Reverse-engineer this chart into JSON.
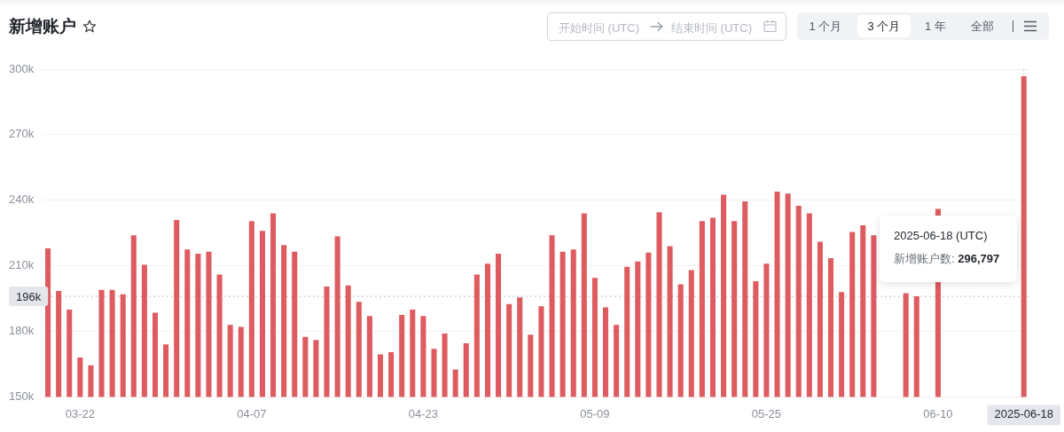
{
  "chart_data": {
    "type": "bar",
    "title": "新增账户",
    "categories": [
      null,
      null,
      null,
      "03-22",
      null,
      null,
      null,
      null,
      null,
      null,
      null,
      null,
      null,
      null,
      null,
      null,
      null,
      null,
      null,
      "04-07",
      null,
      null,
      null,
      null,
      null,
      null,
      null,
      null,
      null,
      null,
      null,
      null,
      null,
      null,
      null,
      "04-23",
      null,
      null,
      null,
      null,
      null,
      null,
      null,
      null,
      null,
      null,
      null,
      null,
      null,
      null,
      null,
      "05-09",
      null,
      null,
      null,
      null,
      null,
      null,
      null,
      null,
      null,
      null,
      null,
      null,
      null,
      null,
      null,
      "05-25",
      null,
      null,
      null,
      null,
      null,
      null,
      null,
      null,
      null,
      null,
      null,
      null,
      null,
      null,
      null,
      "06-10",
      null,
      null,
      null,
      null,
      null,
      null,
      null,
      "2025-06-18"
    ],
    "values": [
      218000,
      198500,
      190000,
      168000,
      164500,
      199000,
      199000,
      197000,
      224000,
      210500,
      188500,
      174000,
      231000,
      217500,
      215500,
      216500,
      206000,
      183000,
      182000,
      230500,
      226000,
      234000,
      219500,
      216500,
      177500,
      176000,
      200500,
      223500,
      201000,
      193500,
      187000,
      169500,
      170500,
      187500,
      190000,
      187000,
      172000,
      179000,
      162500,
      174500,
      206000,
      211000,
      215500,
      192500,
      195500,
      178500,
      191500,
      224000,
      216500,
      217500,
      234000,
      204500,
      191000,
      183000,
      209500,
      212000,
      216000,
      234500,
      219000,
      201500,
      208000,
      230500,
      232000,
      242500,
      230500,
      239500,
      203000,
      211000,
      244000,
      243000,
      237500,
      234000,
      221000,
      213500,
      198000,
      225500,
      228500,
      224000,
      null,
      null,
      197500,
      196000,
      null,
      236000,
      null,
      null,
      null,
      null,
      null,
      null,
      null,
      296797
    ],
    "color": "#de5b5f",
    "ylim": [
      150000,
      300000
    ],
    "yticks": [
      {
        "value": 150000,
        "label": "150k"
      },
      {
        "value": 180000,
        "label": "180k"
      },
      {
        "value": 210000,
        "label": "210k"
      },
      {
        "value": 240000,
        "label": "240k"
      },
      {
        "value": 270000,
        "label": "270k"
      },
      {
        "value": 300000,
        "label": "300k"
      }
    ],
    "grid": "y",
    "ref_lines": [
      {
        "axis": "y",
        "value": 196000,
        "label": "196k",
        "line_style": "dotted"
      },
      {
        "axis": "x",
        "value": "2025-06-18",
        "line_style": "dotted"
      }
    ],
    "annotations": [
      "开始时间 (UTC)",
      "结束时间 (UTC)",
      "1 个月",
      "3 个月",
      "1 年",
      "全部",
      "2025-06-18 (UTC)",
      "新增账户数: 296,797"
    ]
  }
}
